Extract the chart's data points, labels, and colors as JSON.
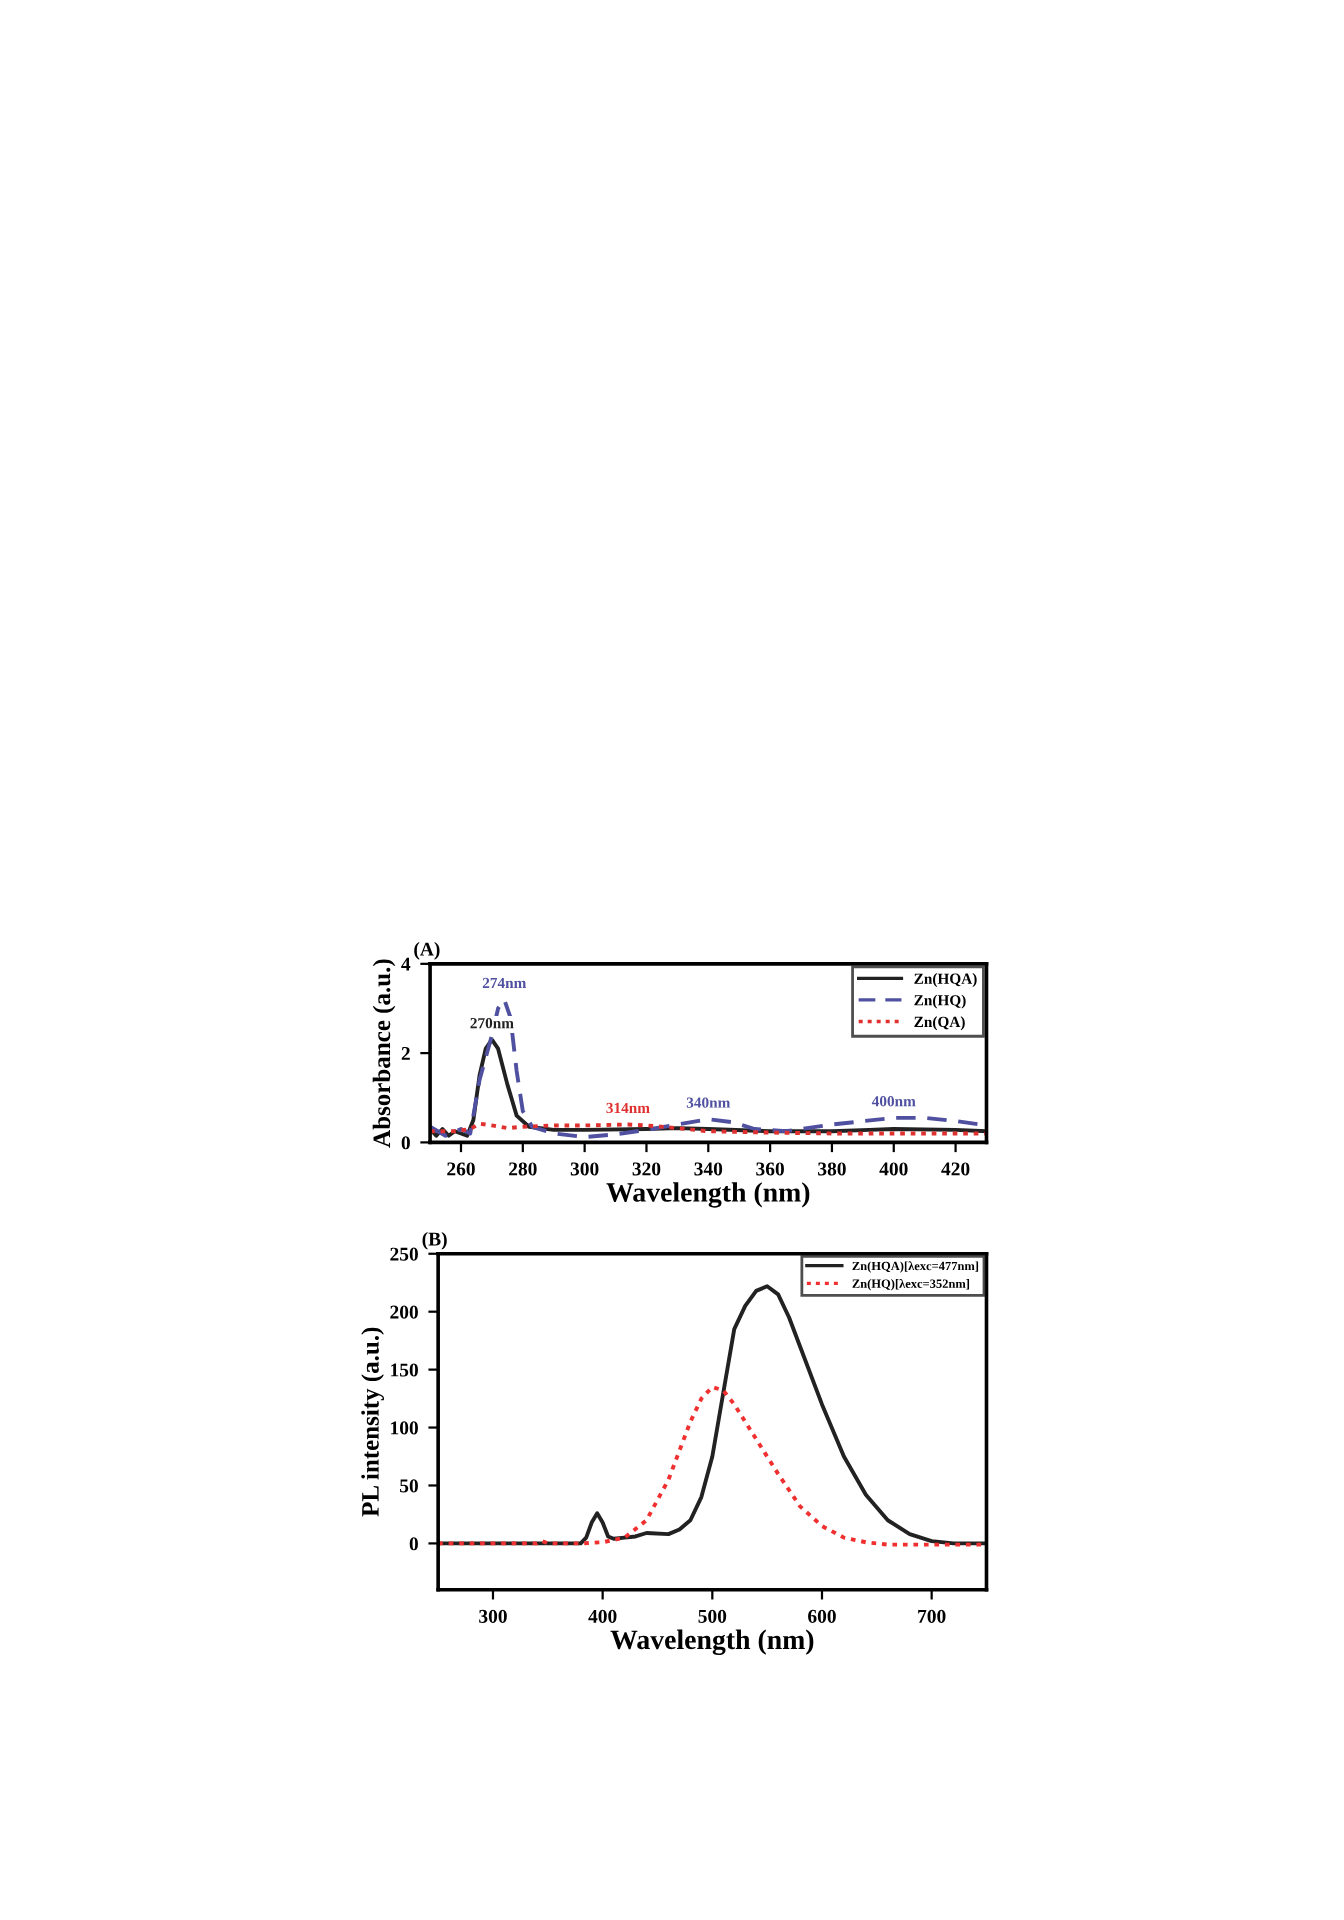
{
  "chart_data": [
    {
      "type": "line",
      "title": "(A)",
      "xlabel": "Wavelength (nm)",
      "ylabel": "Absorbance (a.u.)",
      "xlim": [
        250,
        430
      ],
      "ylim": [
        0,
        4
      ],
      "xticks": [
        260,
        280,
        300,
        320,
        340,
        360,
        380,
        400,
        420
      ],
      "yticks": [
        0,
        2,
        4
      ],
      "legend": "top right",
      "series": [
        {
          "name": "Zn(HQA)",
          "color": "#222222",
          "line_style": "solid",
          "x": [
            250,
            252,
            254,
            256,
            258,
            260,
            262,
            264,
            266,
            268,
            270,
            272,
            275,
            278,
            282,
            290,
            300,
            320,
            330,
            340,
            360,
            380,
            392,
            400,
            420,
            430
          ],
          "values": [
            0.3,
            0.15,
            0.3,
            0.15,
            0.25,
            0.2,
            0.15,
            0.5,
            1.5,
            2.1,
            2.3,
            2.1,
            1.3,
            0.6,
            0.35,
            0.28,
            0.28,
            0.3,
            0.32,
            0.3,
            0.25,
            0.25,
            0.28,
            0.3,
            0.28,
            0.25
          ]
        },
        {
          "name": "Zn(HQ)",
          "color": "#5050a0",
          "line_style": "dashed",
          "x": [
            250,
            255,
            260,
            263,
            266,
            270,
            272,
            274,
            276,
            278,
            280,
            283,
            290,
            300,
            310,
            320,
            330,
            340,
            348,
            355,
            365,
            380,
            400,
            410,
            420,
            430
          ],
          "values": [
            0.35,
            0.15,
            0.3,
            0.2,
            1.4,
            2.4,
            3.0,
            3.2,
            2.8,
            1.6,
            0.7,
            0.35,
            0.2,
            0.12,
            0.18,
            0.28,
            0.4,
            0.52,
            0.45,
            0.3,
            0.25,
            0.4,
            0.55,
            0.55,
            0.48,
            0.38
          ]
        },
        {
          "name": "Zn(QA)",
          "color": "#e03030",
          "line_style": "dotted",
          "x": [
            250,
            258,
            263,
            266,
            270,
            275,
            280,
            290,
            300,
            314,
            320,
            330,
            340,
            360,
            380,
            400,
            430
          ],
          "values": [
            0.25,
            0.25,
            0.3,
            0.42,
            0.38,
            0.32,
            0.35,
            0.38,
            0.38,
            0.4,
            0.38,
            0.32,
            0.25,
            0.22,
            0.2,
            0.2,
            0.2
          ]
        }
      ],
      "annotations": [
        {
          "text": "270nm",
          "x": 270,
          "y": 2.3
        },
        {
          "text": "274nm",
          "x": 274,
          "y": 3.2
        },
        {
          "text": "314nm",
          "x": 314,
          "y": 0.4
        },
        {
          "text": "340nm",
          "x": 340,
          "y": 0.52
        },
        {
          "text": "400nm",
          "x": 400,
          "y": 0.55
        }
      ]
    },
    {
      "type": "line",
      "title": "(B)",
      "xlabel": "Wavelength (nm)",
      "ylabel": "PL intensity (a.u.)",
      "xlim": [
        250,
        750
      ],
      "ylim": [
        -40,
        250
      ],
      "xticks": [
        300,
        400,
        500,
        600,
        700
      ],
      "yticks": [
        0,
        50,
        100,
        150,
        200,
        250
      ],
      "legend": "top right",
      "series": [
        {
          "name": "Zn(HQA)[λexc=477nm]",
          "color": "#222222",
          "line_style": "solid",
          "x": [
            250,
            380,
            385,
            390,
            395,
            400,
            405,
            410,
            420,
            430,
            440,
            460,
            470,
            480,
            490,
            500,
            510,
            520,
            530,
            540,
            550,
            560,
            570,
            580,
            600,
            620,
            640,
            660,
            680,
            700,
            720,
            750
          ],
          "values": [
            0,
            0,
            5,
            18,
            26,
            18,
            6,
            4,
            5,
            6,
            9,
            8,
            12,
            20,
            40,
            75,
            130,
            185,
            205,
            218,
            222,
            215,
            195,
            170,
            120,
            75,
            42,
            20,
            8,
            2,
            0,
            0
          ]
        },
        {
          "name": "Zn(HQ)[λexc=352nm]",
          "color": "#f03030",
          "line_style": "dotted",
          "x": [
            250,
            340,
            345,
            350,
            380,
            400,
            420,
            440,
            460,
            480,
            490,
            500,
            510,
            520,
            540,
            560,
            580,
            600,
            620,
            640,
            660,
            700,
            750
          ],
          "values": [
            0,
            0,
            2,
            0,
            0,
            1,
            5,
            20,
            55,
            105,
            125,
            135,
            132,
            120,
            90,
            60,
            32,
            15,
            5,
            1,
            -1,
            -1,
            -1
          ]
        }
      ]
    }
  ]
}
